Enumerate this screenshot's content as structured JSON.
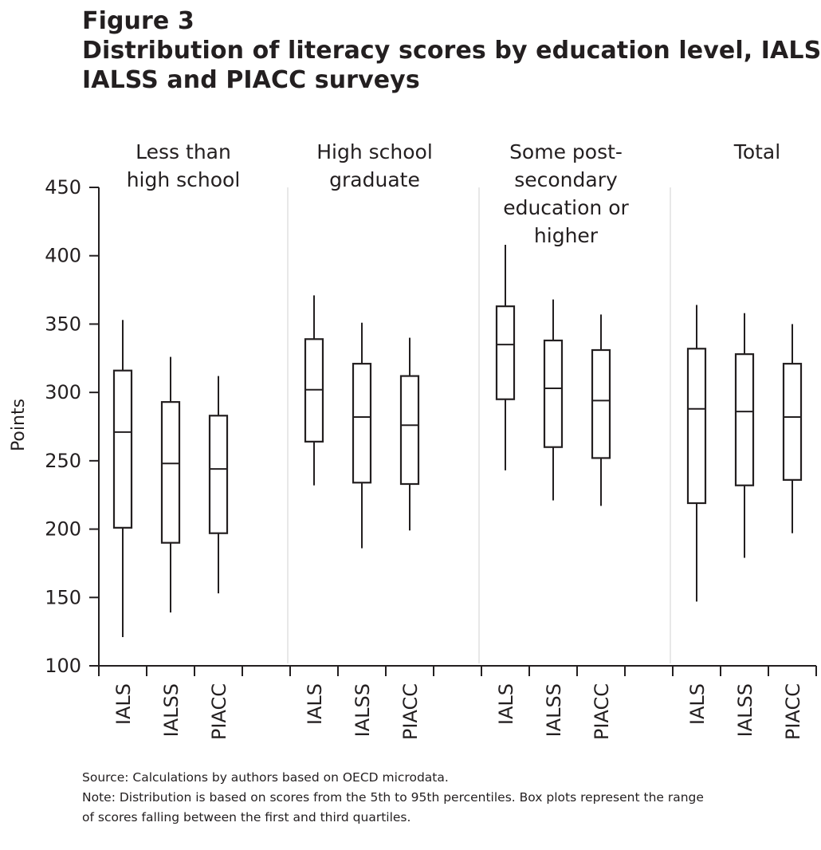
{
  "figure": {
    "label": "Figure 3",
    "title_line1": "Distribution of literacy scores by education level, IALS,",
    "title_line2": "IALSS and PIACC surveys"
  },
  "chart_data": {
    "type": "box",
    "title": "Distribution of literacy scores by education level, IALS, IALSS and PIACC surveys",
    "ylabel": "Points",
    "ylim": [
      100,
      450
    ],
    "yticks": [
      100,
      150,
      200,
      250,
      300,
      350,
      400,
      450
    ],
    "grid": false,
    "groups": [
      {
        "label_lines": [
          "Less than",
          "high school"
        ],
        "boxes": [
          {
            "survey": "IALS",
            "p5": 121,
            "q1": 201,
            "median": 271,
            "q3": 316,
            "p95": 353
          },
          {
            "survey": "IALSS",
            "p5": 139,
            "q1": 190,
            "median": 248,
            "q3": 293,
            "p95": 326
          },
          {
            "survey": "PIACC",
            "p5": 153,
            "q1": 197,
            "median": 244,
            "q3": 283,
            "p95": 312
          }
        ]
      },
      {
        "label_lines": [
          "High school",
          "graduate"
        ],
        "boxes": [
          {
            "survey": "IALS",
            "p5": 232,
            "q1": 264,
            "median": 302,
            "q3": 339,
            "p95": 371
          },
          {
            "survey": "IALSS",
            "p5": 186,
            "q1": 234,
            "median": 282,
            "q3": 321,
            "p95": 351
          },
          {
            "survey": "PIACC",
            "p5": 199,
            "q1": 233,
            "median": 276,
            "q3": 312,
            "p95": 340
          }
        ]
      },
      {
        "label_lines": [
          "Some post-",
          "secondary",
          "education or",
          "higher"
        ],
        "boxes": [
          {
            "survey": "IALS",
            "p5": 243,
            "q1": 295,
            "median": 335,
            "q3": 363,
            "p95": 408
          },
          {
            "survey": "IALSS",
            "p5": 221,
            "q1": 260,
            "median": 303,
            "q3": 338,
            "p95": 368
          },
          {
            "survey": "PIACC",
            "p5": 217,
            "q1": 252,
            "median": 294,
            "q3": 331,
            "p95": 357
          }
        ]
      },
      {
        "label_lines": [
          "Total"
        ],
        "boxes": [
          {
            "survey": "IALS",
            "p5": 147,
            "q1": 219,
            "median": 288,
            "q3": 332,
            "p95": 364
          },
          {
            "survey": "IALSS",
            "p5": 179,
            "q1": 232,
            "median": 286,
            "q3": 328,
            "p95": 358
          },
          {
            "survey": "PIACC",
            "p5": 197,
            "q1": 236,
            "median": 282,
            "q3": 321,
            "p95": 350
          }
        ]
      }
    ]
  },
  "notes": {
    "source": "Source: Calculations by authors based on OECD microdata.",
    "note_line1": "Note: Distribution is based on scores from the 5th to 95th percentiles. Box plots represent the range",
    "note_line2": "of scores falling between the first and third quartiles."
  }
}
